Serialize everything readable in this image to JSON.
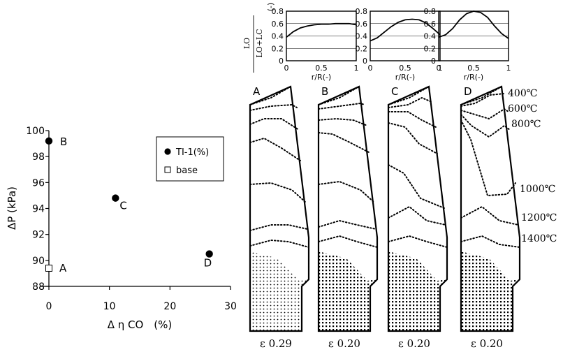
{
  "chart_data": [
    {
      "type": "scatter",
      "xlabel": "Δ η CO　(%)",
      "ylabel": "ΔP (kPa)",
      "xlim": [
        0,
        30
      ],
      "ylim": [
        88,
        100
      ],
      "xticks": [
        "0",
        "10",
        "20",
        "30"
      ],
      "yticks": [
        "88",
        "90",
        "92",
        "94",
        "96",
        "98",
        "100"
      ],
      "grid": false,
      "legend_position": "top-right",
      "series": [
        {
          "name": "TI-1(%)",
          "marker": "filled-circle",
          "points": [
            {
              "x": 0,
              "y": 99.2,
              "label": "B"
            },
            {
              "x": 11,
              "y": 94.8,
              "label": "C"
            },
            {
              "x": 26.5,
              "y": 90.5,
              "label": "D"
            }
          ]
        },
        {
          "name": "base",
          "marker": "open-square",
          "points": [
            {
              "x": 0,
              "y": 89.4,
              "label": "A"
            }
          ]
        }
      ]
    },
    {
      "type": "line",
      "ylabel_num": "LO",
      "ylabel_den": "LO+LC",
      "ylabel_unit": "(-)",
      "xlabel": "r/R(-)",
      "xticks": [
        "0",
        "0.5",
        "1"
      ],
      "yticks": [
        "0",
        "0.2",
        "0.4",
        "0.6",
        "0.8"
      ],
      "xlim": [
        0,
        1
      ],
      "ylim": [
        0,
        0.8
      ],
      "panels": [
        {
          "id": "A",
          "x": [
            0,
            0.1,
            0.2,
            0.3,
            0.4,
            0.5,
            0.6,
            0.7,
            0.8,
            0.9,
            1.0
          ],
          "y": [
            0.38,
            0.47,
            0.53,
            0.56,
            0.58,
            0.59,
            0.59,
            0.6,
            0.6,
            0.6,
            0.58
          ]
        },
        {
          "id": "C",
          "x": [
            0,
            0.1,
            0.2,
            0.3,
            0.4,
            0.5,
            0.6,
            0.7,
            0.8,
            0.9,
            1.0
          ],
          "y": [
            0.32,
            0.37,
            0.46,
            0.55,
            0.62,
            0.66,
            0.67,
            0.66,
            0.61,
            0.52,
            0.42
          ]
        },
        {
          "id": "D",
          "x": [
            0,
            0.1,
            0.2,
            0.3,
            0.4,
            0.5,
            0.6,
            0.7,
            0.8,
            0.9,
            1.0
          ],
          "y": [
            0.38,
            0.42,
            0.52,
            0.66,
            0.76,
            0.8,
            0.78,
            0.7,
            0.56,
            0.44,
            0.36
          ]
        }
      ]
    },
    {
      "type": "diagram",
      "profiles": [
        "A",
        "B",
        "C",
        "D"
      ],
      "isotherm_labels": [
        "400℃",
        "600℃",
        "800℃",
        "1000℃",
        "1200℃",
        "1400℃"
      ],
      "strain_labels": [
        "ε 0.29",
        "ε 0.20",
        "ε 0.20",
        "ε 0.20"
      ]
    }
  ]
}
